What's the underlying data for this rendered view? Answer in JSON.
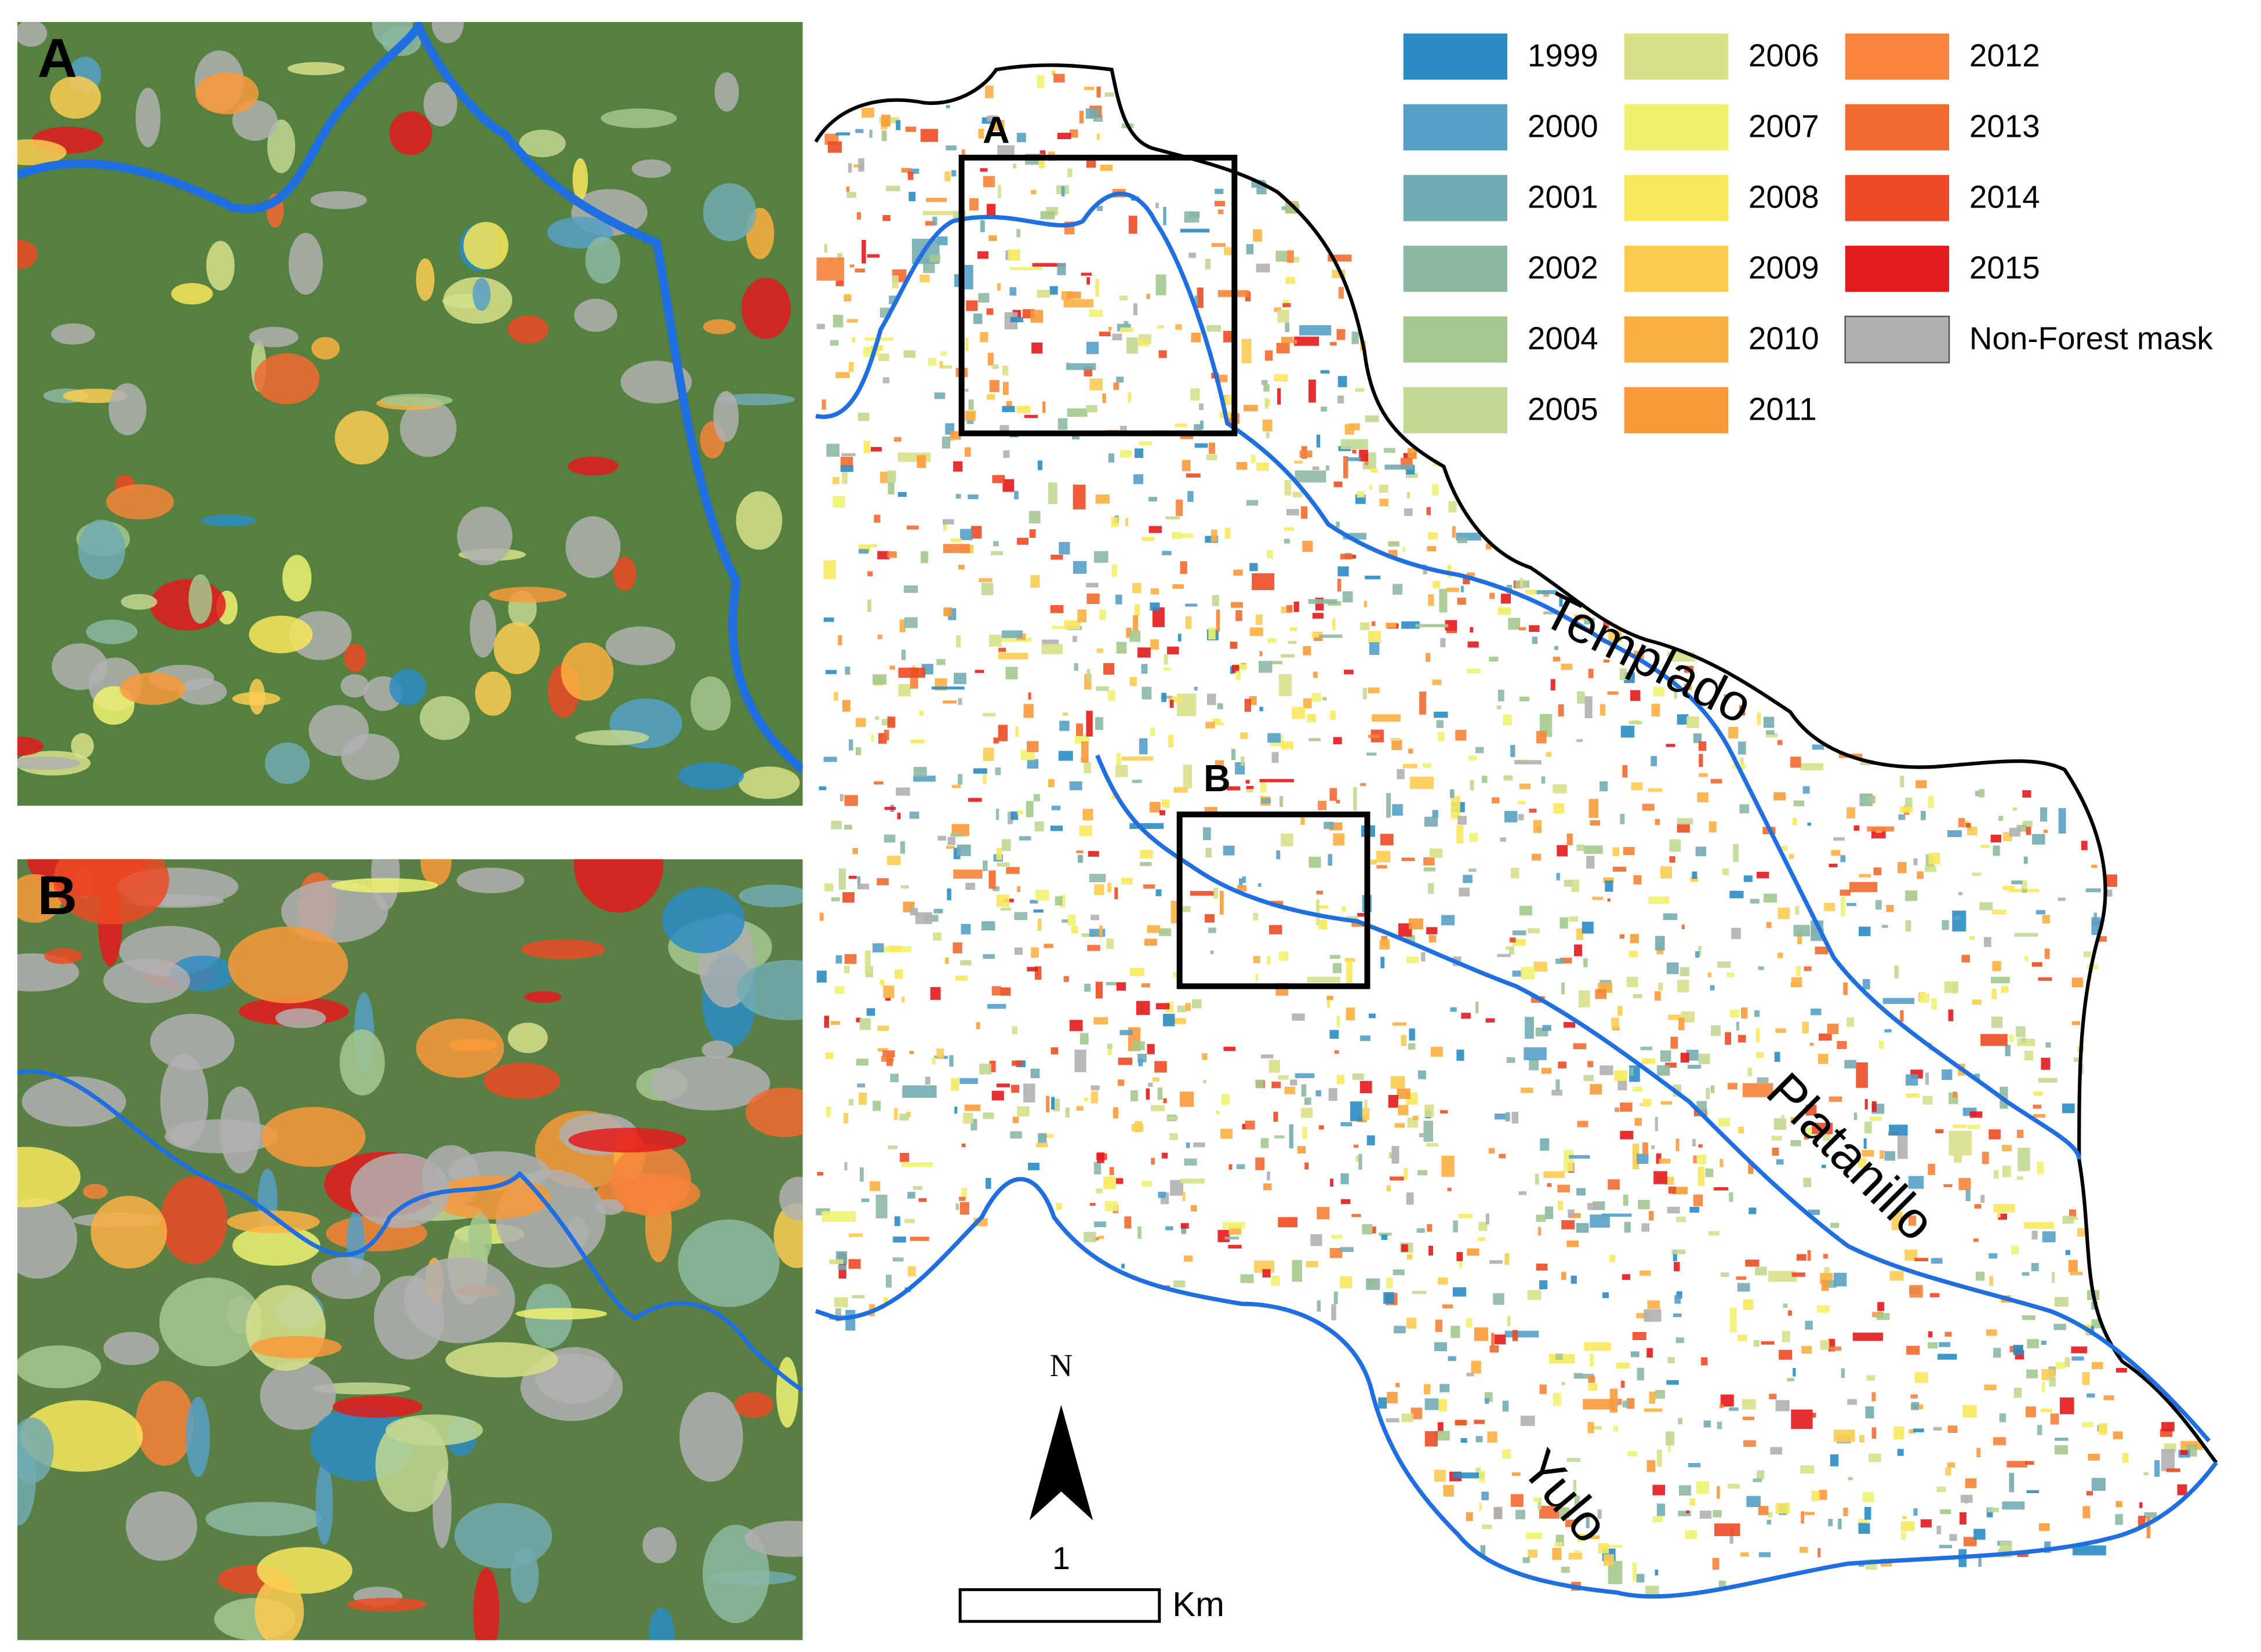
{
  "panels": {
    "A": "A",
    "B": "B"
  },
  "inset_labels": {
    "A": "A",
    "B": "B"
  },
  "rivers": {
    "templado": "Templado",
    "platanillo": "Platanillo",
    "yulo": "Yulo"
  },
  "north": "N",
  "scale": {
    "value": 1,
    "unit": "Km"
  },
  "legend": [
    {
      "label": "1999",
      "color": "#2b8cc4"
    },
    {
      "label": "2000",
      "color": "#56a0c6"
    },
    {
      "label": "2001",
      "color": "#72acb2"
    },
    {
      "label": "2002",
      "color": "#8cb8a2"
    },
    {
      "label": "2004",
      "color": "#a4c88e"
    },
    {
      "label": "2005",
      "color": "#c2d892"
    },
    {
      "label": "2006",
      "color": "#d8e08a"
    },
    {
      "label": "2007",
      "color": "#eef270"
    },
    {
      "label": "2008",
      "color": "#f8e85c"
    },
    {
      "label": "2009",
      "color": "#fbcc52"
    },
    {
      "label": "2010",
      "color": "#fbb042"
    },
    {
      "label": "2011",
      "color": "#f99a3a"
    },
    {
      "label": "2012",
      "color": "#f7843a"
    },
    {
      "label": "2013",
      "color": "#f26a30"
    },
    {
      "label": "2014",
      "color": "#ec4a24"
    },
    {
      "label": "2015",
      "color": "#e41a1c"
    },
    {
      "label": "Non-Forest mask",
      "color": "#b0b0b0"
    }
  ]
}
